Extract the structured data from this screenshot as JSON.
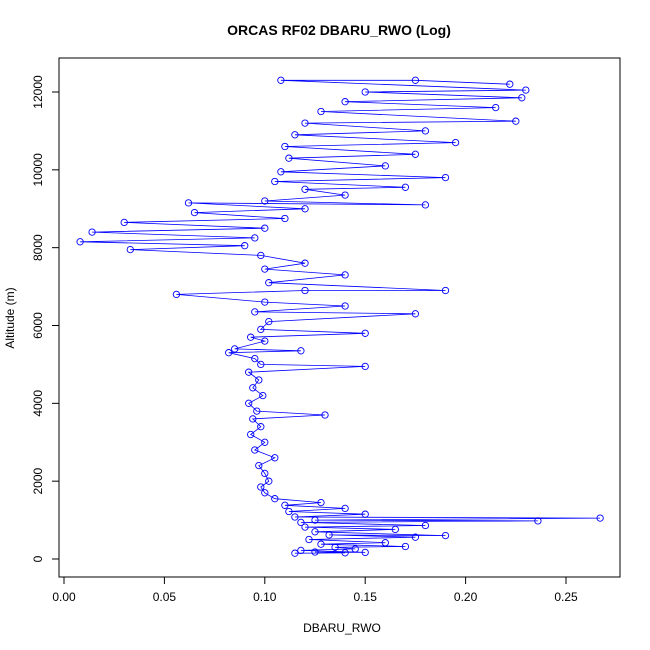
{
  "chart_data": {
    "type": "scatter",
    "title": "ORCAS RF02 DBARU_RWO (Log)",
    "xlabel": "DBARU_RWO",
    "ylabel": "Altitude (m)",
    "xlim": [
      0.0,
      0.28
    ],
    "ylim": [
      0,
      12500
    ],
    "x_ticks": [
      0.0,
      0.05,
      0.1,
      0.15,
      0.2,
      0.25
    ],
    "x_tick_labels": [
      "0.00",
      "0.05",
      "0.10",
      "0.15",
      "0.20",
      "0.25"
    ],
    "y_ticks": [
      0,
      2000,
      4000,
      6000,
      8000,
      10000,
      12000
    ],
    "y_tick_labels": [
      "0",
      "2000",
      "4000",
      "6000",
      "8000",
      "10000",
      "12000"
    ],
    "grid": false,
    "series": [
      {
        "color": "#0000ff",
        "marker": "open-circle",
        "connected": true,
        "points": [
          [
            0.115,
            150
          ],
          [
            0.14,
            160
          ],
          [
            0.125,
            180
          ],
          [
            0.15,
            170
          ],
          [
            0.118,
            220
          ],
          [
            0.145,
            260
          ],
          [
            0.135,
            300
          ],
          [
            0.17,
            320
          ],
          [
            0.128,
            380
          ],
          [
            0.16,
            420
          ],
          [
            0.122,
            500
          ],
          [
            0.175,
            560
          ],
          [
            0.132,
            620
          ],
          [
            0.19,
            600
          ],
          [
            0.125,
            700
          ],
          [
            0.165,
            760
          ],
          [
            0.12,
            820
          ],
          [
            0.18,
            860
          ],
          [
            0.118,
            940
          ],
          [
            0.236,
            980
          ],
          [
            0.125,
            1000
          ],
          [
            0.267,
            1050
          ],
          [
            0.115,
            1080
          ],
          [
            0.15,
            1150
          ],
          [
            0.112,
            1220
          ],
          [
            0.14,
            1300
          ],
          [
            0.11,
            1380
          ],
          [
            0.128,
            1450
          ],
          [
            0.105,
            1550
          ],
          [
            0.1,
            1700
          ],
          [
            0.098,
            1850
          ],
          [
            0.102,
            2000
          ],
          [
            0.1,
            2200
          ],
          [
            0.097,
            2400
          ],
          [
            0.105,
            2600
          ],
          [
            0.095,
            2800
          ],
          [
            0.1,
            3000
          ],
          [
            0.093,
            3200
          ],
          [
            0.098,
            3400
          ],
          [
            0.094,
            3600
          ],
          [
            0.13,
            3700
          ],
          [
            0.096,
            3800
          ],
          [
            0.092,
            4000
          ],
          [
            0.099,
            4200
          ],
          [
            0.094,
            4400
          ],
          [
            0.097,
            4600
          ],
          [
            0.092,
            4800
          ],
          [
            0.15,
            4950
          ],
          [
            0.098,
            5000
          ],
          [
            0.095,
            5150
          ],
          [
            0.082,
            5300
          ],
          [
            0.118,
            5350
          ],
          [
            0.085,
            5400
          ],
          [
            0.1,
            5600
          ],
          [
            0.093,
            5700
          ],
          [
            0.15,
            5800
          ],
          [
            0.098,
            5900
          ],
          [
            0.102,
            6100
          ],
          [
            0.175,
            6300
          ],
          [
            0.095,
            6350
          ],
          [
            0.14,
            6500
          ],
          [
            0.1,
            6600
          ],
          [
            0.056,
            6800
          ],
          [
            0.12,
            6900
          ],
          [
            0.19,
            6900
          ],
          [
            0.102,
            7100
          ],
          [
            0.14,
            7300
          ],
          [
            0.1,
            7450
          ],
          [
            0.12,
            7600
          ],
          [
            0.098,
            7800
          ],
          [
            0.033,
            7950
          ],
          [
            0.09,
            8050
          ],
          [
            0.008,
            8150
          ],
          [
            0.095,
            8250
          ],
          [
            0.014,
            8400
          ],
          [
            0.1,
            8500
          ],
          [
            0.03,
            8650
          ],
          [
            0.11,
            8750
          ],
          [
            0.065,
            8900
          ],
          [
            0.12,
            9000
          ],
          [
            0.062,
            9150
          ],
          [
            0.18,
            9100
          ],
          [
            0.1,
            9200
          ],
          [
            0.14,
            9350
          ],
          [
            0.12,
            9500
          ],
          [
            0.17,
            9550
          ],
          [
            0.105,
            9700
          ],
          [
            0.19,
            9800
          ],
          [
            0.108,
            9950
          ],
          [
            0.16,
            10100
          ],
          [
            0.112,
            10300
          ],
          [
            0.175,
            10400
          ],
          [
            0.11,
            10600
          ],
          [
            0.195,
            10700
          ],
          [
            0.115,
            10900
          ],
          [
            0.18,
            11000
          ],
          [
            0.12,
            11200
          ],
          [
            0.225,
            11250
          ],
          [
            0.128,
            11500
          ],
          [
            0.215,
            11600
          ],
          [
            0.14,
            11750
          ],
          [
            0.228,
            11850
          ],
          [
            0.15,
            12000
          ],
          [
            0.23,
            12050
          ],
          [
            0.108,
            12300
          ],
          [
            0.175,
            12300
          ],
          [
            0.222,
            12200
          ]
        ]
      }
    ]
  }
}
